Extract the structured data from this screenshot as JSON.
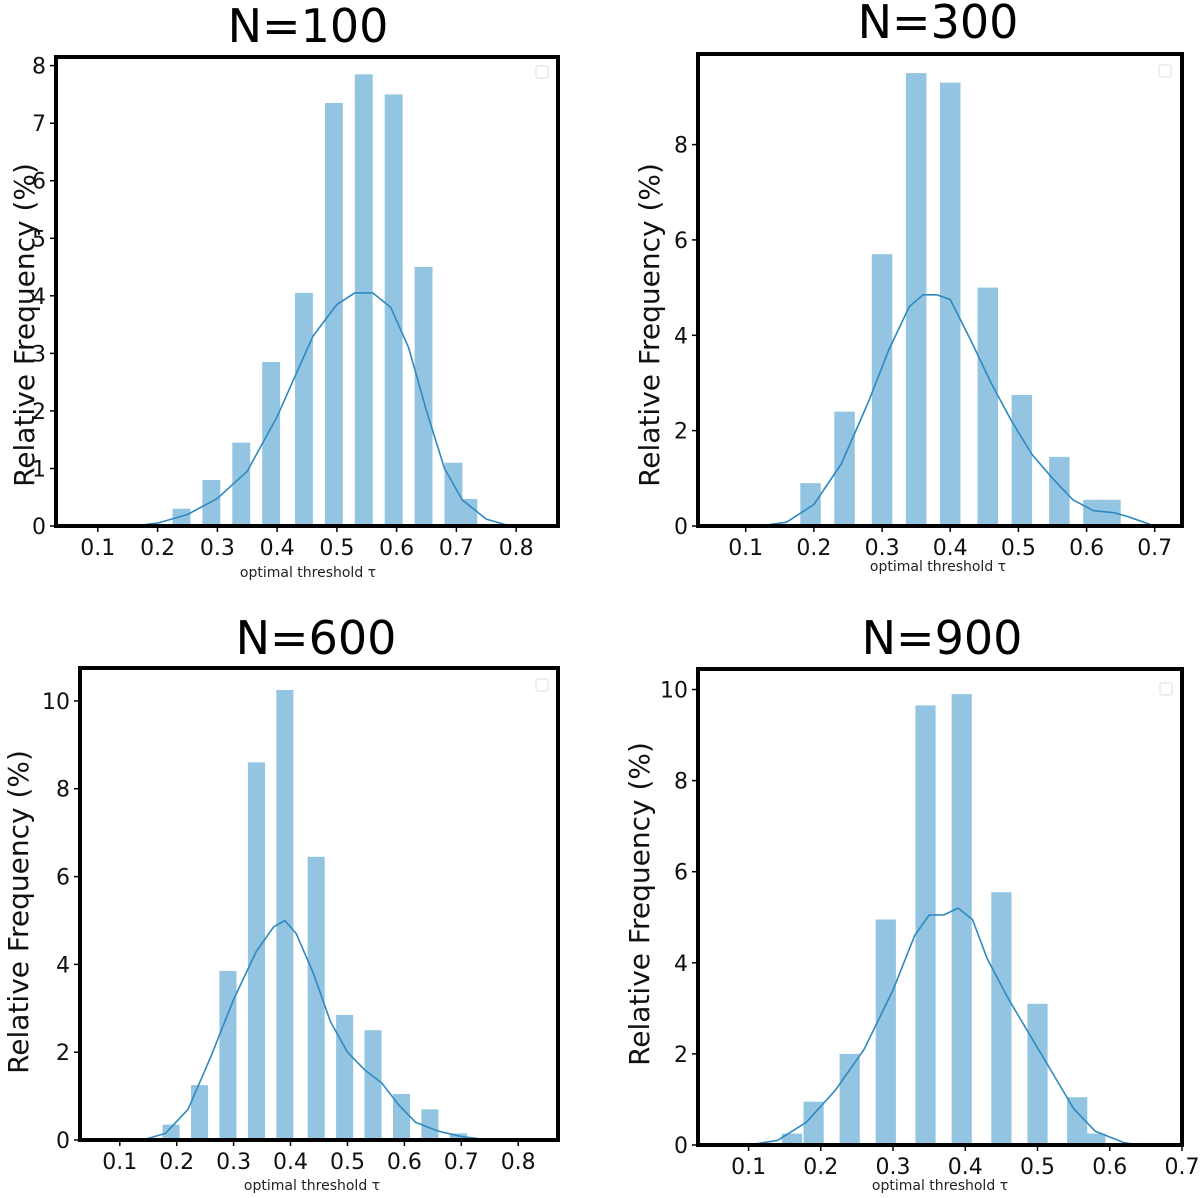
{
  "colors": {
    "bar": "#93c5e2",
    "kde": "#2f89bf",
    "frame": "#000000",
    "legend_box": "#dddddd"
  },
  "chart_data": [
    {
      "type": "bar",
      "title": "N=100",
      "xlabel": "optimal threshold τ",
      "ylabel": "Relative Frequency (%)",
      "xlim": [
        0.03,
        0.87
      ],
      "ylim": [
        0,
        8.15
      ],
      "xticks": [
        0.1,
        0.2,
        0.3,
        0.4,
        0.5,
        0.6,
        0.7,
        0.8
      ],
      "xtick_labels": [
        "0.1",
        "0.2",
        "0.3",
        "0.4",
        "0.5",
        "0.6",
        "0.7",
        "0.8"
      ],
      "yticks": [
        0,
        1,
        2,
        3,
        4,
        5,
        6,
        7,
        8
      ],
      "ytick_labels": [
        "0",
        "1",
        "2",
        "3",
        "4",
        "5",
        "6",
        "7",
        "8"
      ],
      "bar_width": 0.03,
      "bars": [
        {
          "x": 0.24,
          "y": 0.3
        },
        {
          "x": 0.29,
          "y": 0.8
        },
        {
          "x": 0.34,
          "y": 1.45
        },
        {
          "x": 0.39,
          "y": 2.85
        },
        {
          "x": 0.445,
          "y": 4.05
        },
        {
          "x": 0.495,
          "y": 7.35
        },
        {
          "x": 0.545,
          "y": 7.85
        },
        {
          "x": 0.595,
          "y": 7.5
        },
        {
          "x": 0.645,
          "y": 4.5
        },
        {
          "x": 0.695,
          "y": 1.1
        },
        {
          "x": 0.72,
          "y": 0.47
        }
      ],
      "kde": [
        [
          0.16,
          0.0
        ],
        [
          0.2,
          0.05
        ],
        [
          0.25,
          0.2
        ],
        [
          0.3,
          0.48
        ],
        [
          0.35,
          0.95
        ],
        [
          0.4,
          1.9
        ],
        [
          0.43,
          2.6
        ],
        [
          0.46,
          3.3
        ],
        [
          0.5,
          3.85
        ],
        [
          0.53,
          4.05
        ],
        [
          0.56,
          4.05
        ],
        [
          0.59,
          3.8
        ],
        [
          0.62,
          3.1
        ],
        [
          0.65,
          2.0
        ],
        [
          0.68,
          1.0
        ],
        [
          0.71,
          0.45
        ],
        [
          0.75,
          0.12
        ],
        [
          0.79,
          0.0
        ]
      ]
    },
    {
      "type": "bar",
      "title": "N=300",
      "xlabel": "optimal threshold τ",
      "ylabel": "Relative Frequency (%)",
      "xlim": [
        0.03,
        0.74
      ],
      "ylim": [
        0,
        9.9
      ],
      "xticks": [
        0.1,
        0.2,
        0.3,
        0.4,
        0.5,
        0.6,
        0.7
      ],
      "xtick_labels": [
        "0.1",
        "0.2",
        "0.3",
        "0.4",
        "0.5",
        "0.6",
        "0.7"
      ],
      "yticks": [
        0,
        2,
        4,
        6,
        8
      ],
      "ytick_labels": [
        "0",
        "2",
        "4",
        "6",
        "8"
      ],
      "bar_width": 0.03,
      "bars": [
        {
          "x": 0.195,
          "y": 0.9
        },
        {
          "x": 0.245,
          "y": 2.4
        },
        {
          "x": 0.3,
          "y": 5.7
        },
        {
          "x": 0.35,
          "y": 9.5
        },
        {
          "x": 0.4,
          "y": 9.3
        },
        {
          "x": 0.455,
          "y": 5.0
        },
        {
          "x": 0.505,
          "y": 2.75
        },
        {
          "x": 0.56,
          "y": 1.45
        },
        {
          "x": 0.61,
          "y": 0.55
        },
        {
          "x": 0.635,
          "y": 0.55
        }
      ],
      "kde": [
        [
          0.12,
          0.0
        ],
        [
          0.16,
          0.08
        ],
        [
          0.2,
          0.45
        ],
        [
          0.24,
          1.3
        ],
        [
          0.28,
          2.6
        ],
        [
          0.31,
          3.7
        ],
        [
          0.34,
          4.6
        ],
        [
          0.36,
          4.85
        ],
        [
          0.38,
          4.85
        ],
        [
          0.4,
          4.75
        ],
        [
          0.43,
          3.9
        ],
        [
          0.46,
          3.0
        ],
        [
          0.49,
          2.2
        ],
        [
          0.52,
          1.5
        ],
        [
          0.55,
          1.0
        ],
        [
          0.58,
          0.55
        ],
        [
          0.61,
          0.32
        ],
        [
          0.64,
          0.28
        ],
        [
          0.66,
          0.2
        ],
        [
          0.7,
          0.0
        ]
      ]
    },
    {
      "type": "bar",
      "title": "N=600",
      "xlabel": "optimal threshold τ",
      "ylabel": "Relative Frequency (%)",
      "xlim": [
        0.03,
        0.87
      ],
      "ylim": [
        0,
        10.75
      ],
      "xticks": [
        0.1,
        0.2,
        0.3,
        0.4,
        0.5,
        0.6,
        0.7,
        0.8
      ],
      "xtick_labels": [
        "0.1",
        "0.2",
        "0.3",
        "0.4",
        "0.5",
        "0.6",
        "0.7",
        "0.8"
      ],
      "yticks": [
        0,
        2,
        4,
        6,
        8,
        10
      ],
      "ytick_labels": [
        "0",
        "2",
        "4",
        "6",
        "8",
        "10"
      ],
      "bar_width": 0.03,
      "bars": [
        {
          "x": 0.19,
          "y": 0.35
        },
        {
          "x": 0.24,
          "y": 1.25
        },
        {
          "x": 0.29,
          "y": 3.85
        },
        {
          "x": 0.34,
          "y": 8.6
        },
        {
          "x": 0.39,
          "y": 10.25
        },
        {
          "x": 0.445,
          "y": 6.45
        },
        {
          "x": 0.495,
          "y": 2.85
        },
        {
          "x": 0.545,
          "y": 2.5
        },
        {
          "x": 0.595,
          "y": 1.05
        },
        {
          "x": 0.645,
          "y": 0.7
        },
        {
          "x": 0.695,
          "y": 0.15
        }
      ],
      "kde": [
        [
          0.14,
          0.0
        ],
        [
          0.18,
          0.15
        ],
        [
          0.22,
          0.7
        ],
        [
          0.26,
          1.9
        ],
        [
          0.3,
          3.2
        ],
        [
          0.34,
          4.3
        ],
        [
          0.37,
          4.85
        ],
        [
          0.39,
          5.0
        ],
        [
          0.41,
          4.7
        ],
        [
          0.44,
          3.8
        ],
        [
          0.47,
          2.7
        ],
        [
          0.5,
          2.0
        ],
        [
          0.53,
          1.6
        ],
        [
          0.56,
          1.3
        ],
        [
          0.59,
          0.8
        ],
        [
          0.62,
          0.4
        ],
        [
          0.66,
          0.2
        ],
        [
          0.7,
          0.08
        ],
        [
          0.75,
          0.0
        ]
      ]
    },
    {
      "type": "bar",
      "title": "N=900",
      "xlabel": "optimal threshold τ",
      "ylabel": "Relative Frequency (%)",
      "xlim": [
        0.03,
        0.7
      ],
      "ylim": [
        0,
        10.45
      ],
      "xticks": [
        0.1,
        0.2,
        0.3,
        0.4,
        0.5,
        0.6,
        0.7
      ],
      "xtick_labels": [
        "0.1",
        "0.2",
        "0.3",
        "0.4",
        "0.5",
        "0.6",
        "0.7"
      ],
      "yticks": [
        0,
        2,
        4,
        6,
        8,
        10
      ],
      "ytick_labels": [
        "0",
        "2",
        "4",
        "6",
        "8",
        "10"
      ],
      "bar_width": 0.028,
      "bars": [
        {
          "x": 0.16,
          "y": 0.25
        },
        {
          "x": 0.19,
          "y": 0.95
        },
        {
          "x": 0.24,
          "y": 2.0
        },
        {
          "x": 0.29,
          "y": 4.95
        },
        {
          "x": 0.345,
          "y": 9.65
        },
        {
          "x": 0.395,
          "y": 9.9
        },
        {
          "x": 0.45,
          "y": 5.55
        },
        {
          "x": 0.5,
          "y": 3.1
        },
        {
          "x": 0.555,
          "y": 1.05
        },
        {
          "x": 0.58,
          "y": 0.25
        }
      ],
      "kde": [
        [
          0.1,
          0.0
        ],
        [
          0.14,
          0.1
        ],
        [
          0.18,
          0.5
        ],
        [
          0.22,
          1.2
        ],
        [
          0.26,
          2.1
        ],
        [
          0.3,
          3.4
        ],
        [
          0.33,
          4.6
        ],
        [
          0.35,
          5.05
        ],
        [
          0.37,
          5.05
        ],
        [
          0.39,
          5.2
        ],
        [
          0.41,
          4.95
        ],
        [
          0.43,
          4.1
        ],
        [
          0.46,
          3.2
        ],
        [
          0.49,
          2.4
        ],
        [
          0.52,
          1.6
        ],
        [
          0.55,
          0.8
        ],
        [
          0.58,
          0.3
        ],
        [
          0.62,
          0.05
        ],
        [
          0.64,
          0.0
        ]
      ]
    }
  ]
}
